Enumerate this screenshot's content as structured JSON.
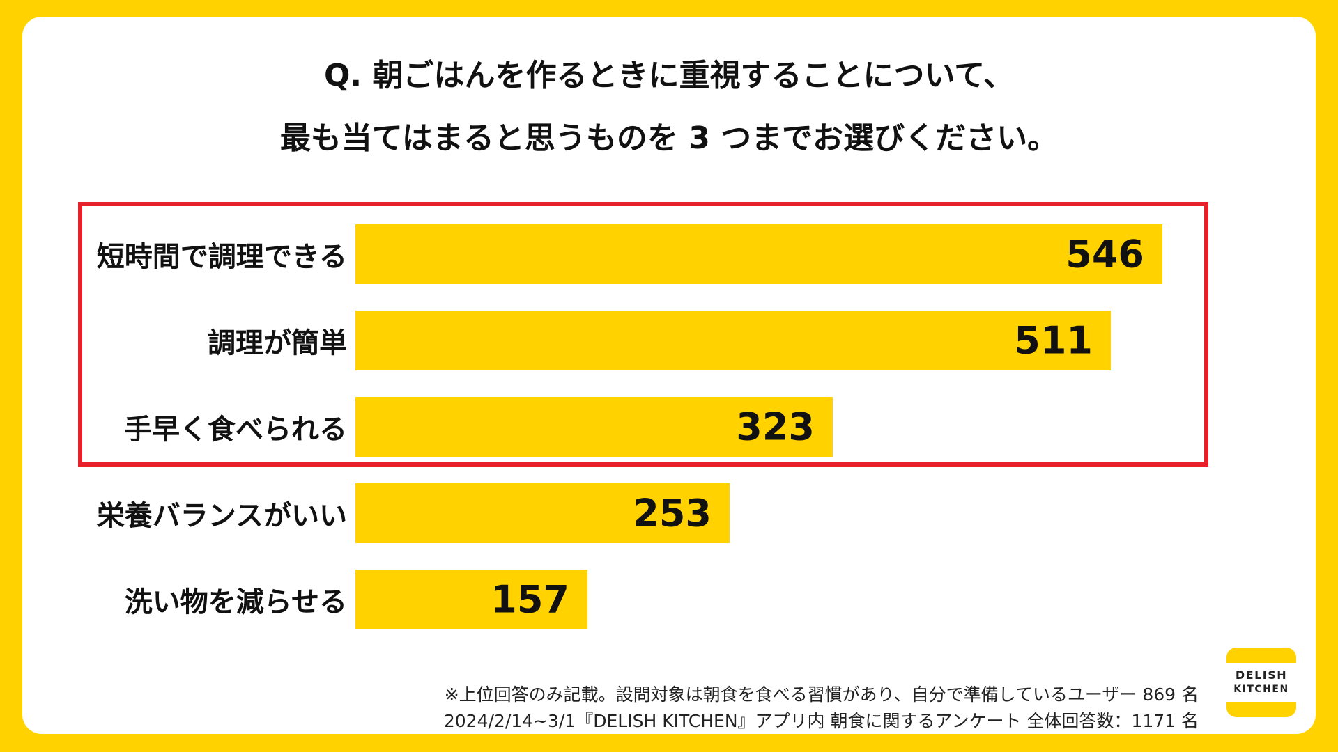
{
  "question": {
    "line1": "Q. 朝ごはんを作るときに重視することについて、",
    "line2": "最も当てはまると思うものを 3 つまでお選びください。"
  },
  "colors": {
    "background": "#FFD200",
    "card": "#FFFFFF",
    "bar": "#FFD200",
    "highlight_border": "#E8202A",
    "text": "#111111"
  },
  "chart_data": {
    "type": "bar",
    "orientation": "horizontal",
    "title": "",
    "xlabel": "",
    "ylabel": "",
    "categories": [
      "短時間で調理できる",
      "調理が簡単",
      "手早く食べられる",
      "栄養バランスがいい",
      "洗い物を減らせる"
    ],
    "values": [
      546,
      511,
      323,
      253,
      157
    ],
    "value_labels": [
      "546",
      "511",
      "323",
      "253",
      "157"
    ],
    "xlim": [
      0,
      600
    ],
    "grid": false,
    "highlighted_categories": [
      "短時間で調理できる",
      "調理が簡単",
      "手早く食べられる"
    ]
  },
  "footnote": {
    "line1": "※上位回答のみ記載。設問対象は朝食を食べる習慣があり、自分で準備しているユーザー 869 名",
    "line2": "2024/2/14~3/1『DELISH KITCHEN』アプリ内 朝食に関するアンケート 全体回答数：1171 名"
  },
  "logo": {
    "line1": "DELISH",
    "line2": "KITCHEN"
  }
}
